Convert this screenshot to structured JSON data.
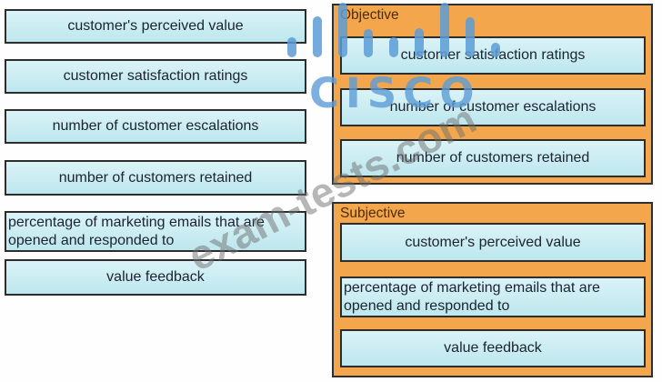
{
  "source_options": [
    {
      "label": "customer's perceived value"
    },
    {
      "label": "customer satisfaction ratings"
    },
    {
      "label": "number of customer escalations"
    },
    {
      "label": "number of customers retained"
    },
    {
      "label": "percentage of marketing emails that are opened and responded to"
    },
    {
      "label": "value feedback"
    }
  ],
  "targets": [
    {
      "title": "Objective",
      "items": [
        {
          "label": "customer satisfaction ratings"
        },
        {
          "label": "number of customer escalations"
        },
        {
          "label": "number of customers retained"
        }
      ]
    },
    {
      "title": "Subjective",
      "items": [
        {
          "label": "customer's perceived value"
        },
        {
          "label": "percentage of marketing emails that are opened and responded to"
        },
        {
          "label": "value feedback"
        }
      ]
    }
  ],
  "watermarks": {
    "brand_text": "CISCO",
    "site_text": "exam-tests.com"
  },
  "colors": {
    "option_fill": "#c5e9f0",
    "option_border": "#2d2d2d",
    "option_text": "#1b2330",
    "zone_fill": "#f3a64c",
    "zone_label_text": "#4d2e07",
    "brand_watermark_blue": "#5c9cd6",
    "site_watermark_gray": "#707070"
  }
}
